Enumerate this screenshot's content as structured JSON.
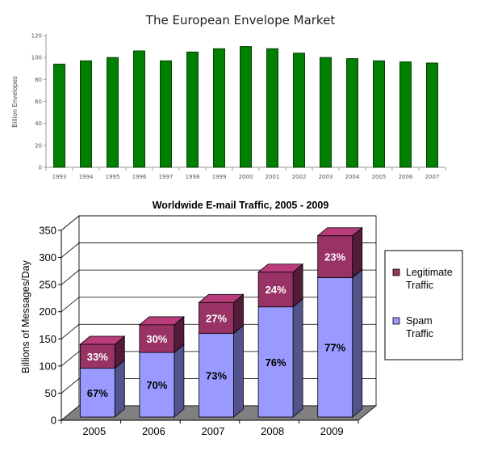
{
  "chart_data": [
    {
      "type": "bar",
      "title": "The European Envelope Market",
      "ylabel": "Billion Envelopes",
      "xlabel": "",
      "categories": [
        "1993",
        "1994",
        "1995",
        "1996",
        "1997",
        "1998",
        "1999",
        "2000",
        "2001",
        "2002",
        "2003",
        "2004",
        "2005",
        "2006",
        "2007"
      ],
      "values": [
        94,
        97,
        100,
        106,
        97,
        105,
        108,
        110,
        108,
        104,
        100,
        99,
        97,
        96,
        95
      ],
      "yticks": [
        0,
        20,
        40,
        60,
        80,
        100,
        120
      ],
      "ylim": [
        0,
        120
      ],
      "grid": false,
      "colors": {
        "bar": "#008000",
        "bar_dark": "#0b3d0b"
      }
    },
    {
      "type": "bar",
      "stacked": true,
      "three_d": true,
      "title": "Worldwide E-mail Traffic, 2005 - 2009",
      "ylabel": "Billions of Messages/Day",
      "xlabel": "",
      "categories": [
        "2005",
        "2006",
        "2007",
        "2008",
        "2009"
      ],
      "yticks": [
        0,
        50,
        100,
        150,
        200,
        250,
        300,
        350
      ],
      "ylim": [
        0,
        350
      ],
      "grid": true,
      "legend_position": "right",
      "series": [
        {
          "name": "Spam Traffic",
          "values": [
            90,
            119,
            154,
            203,
            257
          ],
          "labels": [
            "67%",
            "70%",
            "73%",
            "76%",
            "77%"
          ],
          "color": "#9999ff"
        },
        {
          "name": "Legitimate Traffic",
          "values": [
            44,
            51,
            57,
            64,
            77
          ],
          "labels": [
            "33%",
            "30%",
            "27%",
            "24%",
            "23%"
          ],
          "color": "#993366"
        }
      ],
      "legend": [
        {
          "lines": [
            "Legitimate",
            "Traffic"
          ],
          "color": "#993366"
        },
        {
          "lines": [
            "Spam",
            "Traffic"
          ],
          "color": "#9999ff"
        }
      ]
    }
  ]
}
